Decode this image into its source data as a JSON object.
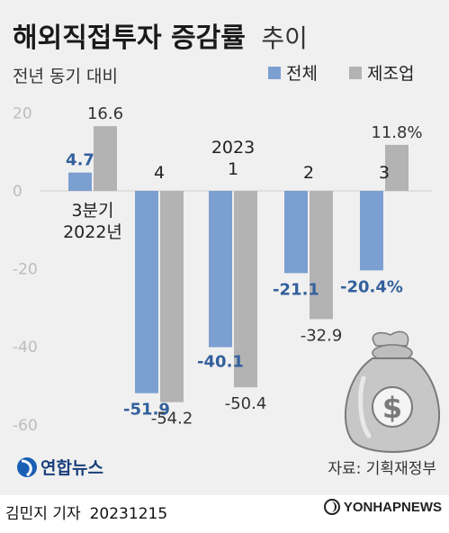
{
  "header": {
    "title": "해외직접투자 증감률",
    "title_suffix": "추이",
    "subtitle": "전년 동기 대비"
  },
  "legend": {
    "items": [
      {
        "label": "전체",
        "color": "#7c9fd1"
      },
      {
        "label": "제조업",
        "color": "#b3b3b3"
      }
    ]
  },
  "chart_data": {
    "type": "bar",
    "title": "해외직접투자 증감률 추이",
    "subtitle": "전년 동기 대비",
    "ylim": [
      -60,
      20
    ],
    "yticks": [
      20,
      0,
      -20,
      -40,
      -60
    ],
    "grid": true,
    "legend_position": "top-right",
    "categories": [
      {
        "id": "q3-2022",
        "lines": [
          "3분기",
          "2022년"
        ]
      },
      {
        "id": "q4-2022",
        "lines": [
          "4"
        ]
      },
      {
        "id": "q1-2023",
        "lines": [
          "2023",
          "1"
        ]
      },
      {
        "id": "q2-2023",
        "lines": [
          "2"
        ]
      },
      {
        "id": "q3-2023",
        "lines": [
          "3"
        ]
      }
    ],
    "series": [
      {
        "name": "전체",
        "color": "#7c9fd1",
        "label_color": "#33609d",
        "values": [
          4.7,
          -51.9,
          -40.1,
          -21.1,
          -20.4
        ],
        "labels": [
          "4.7",
          "-51.9",
          "-40.1",
          "-21.1",
          "-20.4%"
        ]
      },
      {
        "name": "제조업",
        "color": "#b3b3b3",
        "label_color": "#333333",
        "values": [
          16.6,
          -54.2,
          -50.4,
          -32.9,
          11.8
        ],
        "labels": [
          "16.6",
          "-54.2",
          "-50.4",
          "-32.9",
          "11.8%"
        ]
      }
    ]
  },
  "branding": {
    "logo_text": "연합뉴스",
    "source": "자료: 기획재정부",
    "byline": "김민지 기자",
    "date": "20231215",
    "watermark": "YONHAPNEWS"
  },
  "colors": {
    "background": "#f0f0f0",
    "series_all": "#7c9fd1",
    "series_mfg": "#b3b3b3",
    "logo_blue": "#1a5fb4"
  }
}
